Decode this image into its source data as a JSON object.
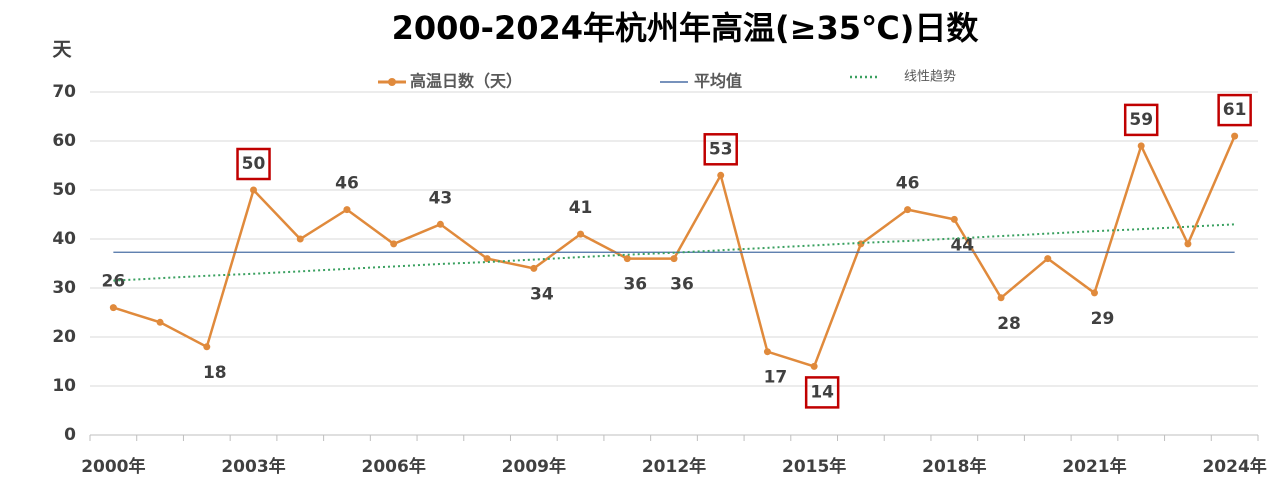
{
  "chart_data": {
    "type": "line",
    "title": "2000-2024年杭州年高温(≥35℃)日数",
    "y_label": "天",
    "categories": [
      "2000年",
      null,
      null,
      "2003年",
      null,
      null,
      "2006年",
      null,
      null,
      "2009年",
      null,
      null,
      "2012年",
      null,
      null,
      "2015年",
      null,
      null,
      "2018年",
      null,
      null,
      "2021年",
      null,
      null,
      "2024年"
    ],
    "series": [
      {
        "name": "高温日数（天）",
        "color": "#e08a3c",
        "style": "solid-marker",
        "values": [
          26,
          23,
          18,
          50,
          40,
          46,
          39,
          43,
          36,
          34,
          41,
          36,
          36,
          53,
          17,
          14,
          39,
          46,
          44,
          28,
          36,
          29,
          59,
          39,
          61
        ],
        "value_labels": [
          "26",
          null,
          "18",
          "50",
          null,
          "46",
          null,
          "43",
          null,
          "34",
          "41",
          "36",
          "36",
          "53",
          "17",
          "14",
          null,
          "46",
          "44",
          "28",
          null,
          "29",
          "59",
          null,
          "61"
        ],
        "highlighted": [
          3,
          13,
          15,
          22,
          24
        ],
        "highlight_color": "#c00000"
      },
      {
        "name": "平均值",
        "color": "#4a6fa5",
        "style": "solid",
        "values": [
          37.3,
          37.3,
          37.3,
          37.3,
          37.3,
          37.3,
          37.3,
          37.3,
          37.3,
          37.3,
          37.3,
          37.3,
          37.3,
          37.3,
          37.3,
          37.3,
          37.3,
          37.3,
          37.3,
          37.3,
          37.3,
          37.3,
          37.3,
          37.3,
          37.3
        ]
      },
      {
        "name": "线性趋势",
        "color": "#3aa060",
        "style": "dotted",
        "values": [
          31.5,
          32.0,
          32.5,
          32.9,
          33.4,
          33.9,
          34.4,
          34.9,
          35.3,
          35.8,
          36.3,
          36.8,
          37.2,
          37.7,
          38.2,
          38.7,
          39.2,
          39.6,
          40.1,
          40.6,
          41.1,
          41.6,
          42.0,
          42.5,
          43.0
        ]
      }
    ],
    "ylim": [
      0,
      70
    ],
    "yticks": [
      0,
      10,
      20,
      30,
      40,
      50,
      60,
      70
    ],
    "grid": true
  }
}
